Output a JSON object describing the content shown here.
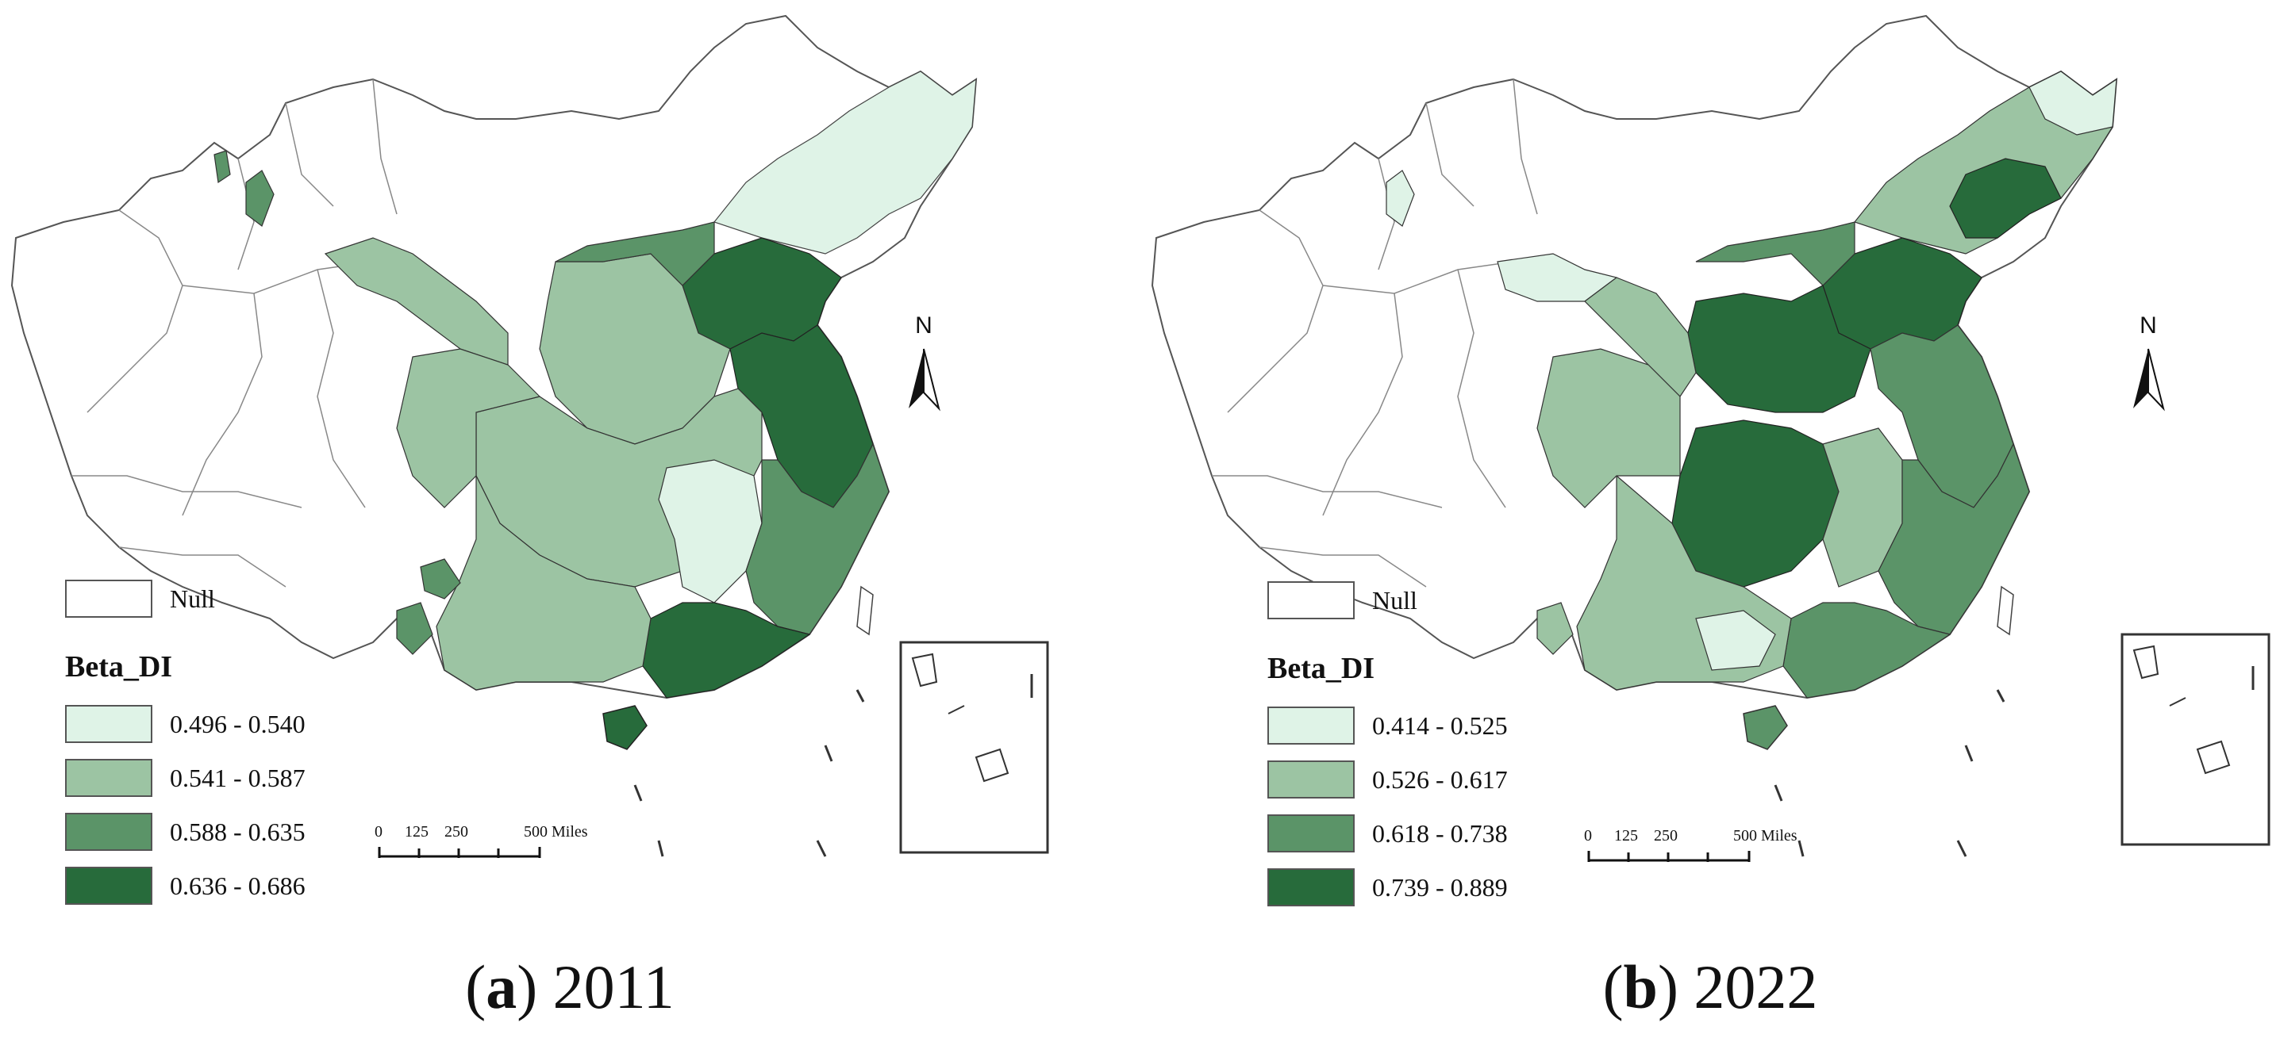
{
  "panels": [
    {
      "id": "a",
      "caption_letter": "a",
      "caption_year": "2011",
      "legend": {
        "null_label": "Null",
        "title": "Beta_DI",
        "classes": [
          {
            "range": "0.496 - 0.540",
            "color": "#dff3e7"
          },
          {
            "range": "0.541 - 0.587",
            "color": "#9cc4a3"
          },
          {
            "range": "0.588 - 0.635",
            "color": "#5b9468"
          },
          {
            "range": "0.636 - 0.686",
            "color": "#276b3b"
          }
        ]
      },
      "scale_bar": {
        "ticks": [
          "0",
          "125",
          "250",
          "500 Miles"
        ]
      },
      "north_label": "N"
    },
    {
      "id": "b",
      "caption_letter": "b",
      "caption_year": "2022",
      "legend": {
        "null_label": "Null",
        "title": "Beta_DI",
        "classes": [
          {
            "range": "0.414 - 0.525",
            "color": "#dff3e7"
          },
          {
            "range": "0.526 - 0.617",
            "color": "#9cc4a3"
          },
          {
            "range": "0.618 - 0.738",
            "color": "#5b9468"
          },
          {
            "range": "0.739 - 0.889",
            "color": "#276b3b"
          }
        ]
      },
      "scale_bar": {
        "ticks": [
          "0",
          "125",
          "250",
          "500 Miles"
        ]
      },
      "north_label": "N"
    }
  ]
}
